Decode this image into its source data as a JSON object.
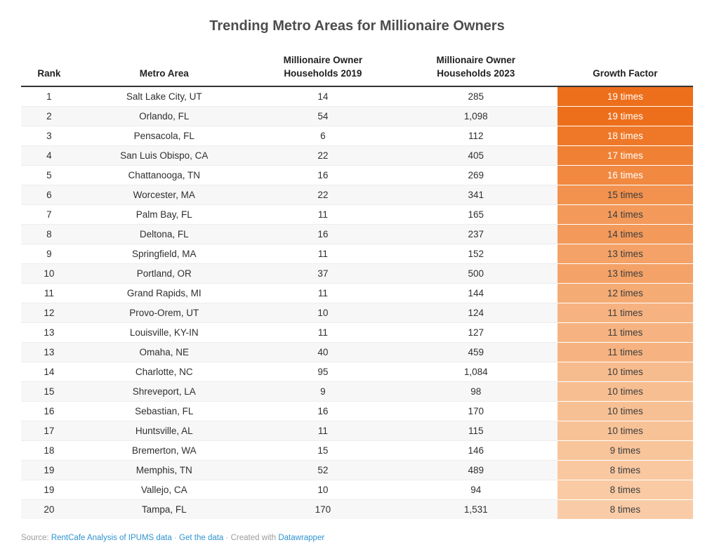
{
  "chart_data": {
    "type": "table",
    "title": "Trending Metro Areas for Millionaire Owners",
    "columns": [
      {
        "label": "Rank"
      },
      {
        "label": "Metro Area"
      },
      {
        "line1": "Millionaire Owner",
        "line2": "Households 2019"
      },
      {
        "line1": "Millionaire Owner",
        "line2": "Households 2023"
      },
      {
        "label": "Growth Factor"
      }
    ],
    "rows": [
      {
        "rank": "1",
        "metro": "Salt Lake City, UT",
        "hh2019": "14",
        "hh2023": "285",
        "growth": "19 times",
        "color": "#EE6F1B",
        "text_color": "#FFFFFF"
      },
      {
        "rank": "2",
        "metro": "Orlando, FL",
        "hh2019": "54",
        "hh2023": "1,098",
        "growth": "19 times",
        "color": "#EE6F1B",
        "text_color": "#FFFFFF"
      },
      {
        "rank": "3",
        "metro": "Pensacola, FL",
        "hh2019": "6",
        "hh2023": "112",
        "growth": "18 times",
        "color": "#EF7828",
        "text_color": "#FFFFFF"
      },
      {
        "rank": "4",
        "metro": "San Luis Obispo, CA",
        "hh2019": "22",
        "hh2023": "405",
        "growth": "17 times",
        "color": "#F08134",
        "text_color": "#FFFFFF"
      },
      {
        "rank": "5",
        "metro": "Chattanooga, TN",
        "hh2019": "16",
        "hh2023": "269",
        "growth": "16 times",
        "color": "#F18941",
        "text_color": "#FFFFFF"
      },
      {
        "rank": "6",
        "metro": "Worcester, MA",
        "hh2019": "22",
        "hh2023": "341",
        "growth": "15 times",
        "color": "#F2924E",
        "text_color": "#3D3D3D"
      },
      {
        "rank": "7",
        "metro": "Palm Bay, FL",
        "hh2019": "11",
        "hh2023": "165",
        "growth": "14 times",
        "color": "#F39A5B",
        "text_color": "#3D3D3D"
      },
      {
        "rank": "8",
        "metro": "Deltona, FL",
        "hh2019": "16",
        "hh2023": "237",
        "growth": "14 times",
        "color": "#F39A5B",
        "text_color": "#3D3D3D"
      },
      {
        "rank": "9",
        "metro": "Springfield, MA",
        "hh2019": "11",
        "hh2023": "152",
        "growth": "13 times",
        "color": "#F4A267",
        "text_color": "#3D3D3D"
      },
      {
        "rank": "10",
        "metro": "Portland, OR",
        "hh2019": "37",
        "hh2023": "500",
        "growth": "13 times",
        "color": "#F4A267",
        "text_color": "#3D3D3D"
      },
      {
        "rank": "11",
        "metro": "Grand Rapids, MI",
        "hh2019": "11",
        "hh2023": "144",
        "growth": "12 times",
        "color": "#F5AB74",
        "text_color": "#3D3D3D"
      },
      {
        "rank": "12",
        "metro": "Provo-Orem, UT",
        "hh2019": "10",
        "hh2023": "124",
        "growth": "11 times",
        "color": "#F6B381",
        "text_color": "#3D3D3D"
      },
      {
        "rank": "13",
        "metro": "Louisville, KY-IN",
        "hh2019": "11",
        "hh2023": "127",
        "growth": "11 times",
        "color": "#F6B381",
        "text_color": "#3D3D3D"
      },
      {
        "rank": "13",
        "metro": "Omaha, NE",
        "hh2019": "40",
        "hh2023": "459",
        "growth": "11 times",
        "color": "#F6B381",
        "text_color": "#3D3D3D"
      },
      {
        "rank": "14",
        "metro": "Charlotte, NC",
        "hh2019": "95",
        "hh2023": "1,084",
        "growth": "10 times",
        "color": "#F7BC8E",
        "text_color": "#3D3D3D"
      },
      {
        "rank": "15",
        "metro": "Shreveport, LA",
        "hh2019": "9",
        "hh2023": "98",
        "growth": "10 times",
        "color": "#F7BE91",
        "text_color": "#3D3D3D"
      },
      {
        "rank": "16",
        "metro": "Sebastian, FL",
        "hh2019": "16",
        "hh2023": "170",
        "growth": "10 times",
        "color": "#F7C094",
        "text_color": "#3D3D3D"
      },
      {
        "rank": "17",
        "metro": "Huntsville, AL",
        "hh2019": "11",
        "hh2023": "115",
        "growth": "10 times",
        "color": "#F8C297",
        "text_color": "#3D3D3D"
      },
      {
        "rank": "18",
        "metro": "Bremerton, WA",
        "hh2019": "15",
        "hh2023": "146",
        "growth": "9 times",
        "color": "#F8C49A",
        "text_color": "#3D3D3D"
      },
      {
        "rank": "19",
        "metro": "Memphis, TN",
        "hh2019": "52",
        "hh2023": "489",
        "growth": "8 times",
        "color": "#F9C8A0",
        "text_color": "#3D3D3D"
      },
      {
        "rank": "19",
        "metro": "Vallejo, CA",
        "hh2019": "10",
        "hh2023": "94",
        "growth": "8 times",
        "color": "#F9CAA3",
        "text_color": "#3D3D3D"
      },
      {
        "rank": "20",
        "metro": "Tampa, FL",
        "hh2019": "170",
        "hh2023": "1,531",
        "growth": "8 times",
        "color": "#F9CCA7",
        "text_color": "#3D3D3D"
      }
    ],
    "layout_hints": {
      "growth_column_gradient": [
        "#EE6F1B",
        "#F9CCA7"
      ],
      "stripe_color": "#f7f7f7",
      "header_rule_color": "#333333"
    }
  },
  "footer": {
    "source_label": "Source: ",
    "source_link": "RentCafe Analysis of IPUMS data",
    "separator": "·",
    "get_data_link": "Get the data",
    "created_with_label": "Created with ",
    "datawrapper_link": "Datawrapper"
  }
}
